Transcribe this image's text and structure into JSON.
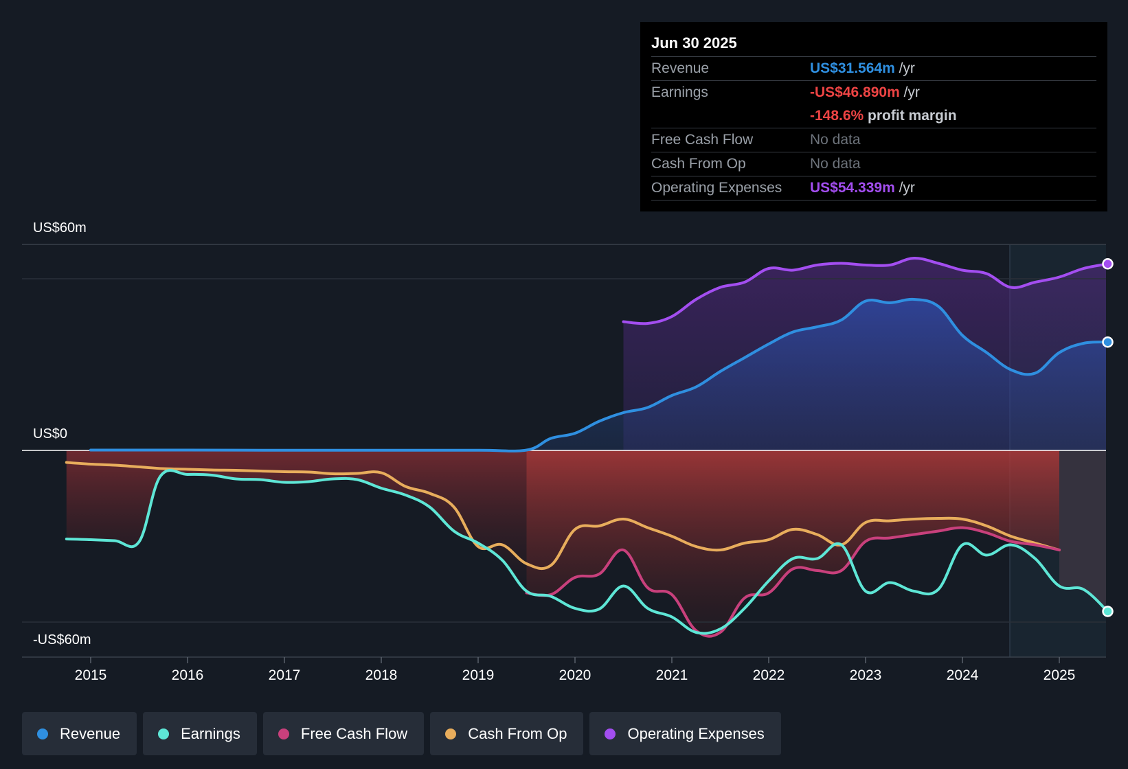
{
  "tooltip": {
    "date": "Jun 30 2025",
    "rows": [
      {
        "label": "Revenue",
        "value": "US$31.564m",
        "unit": " /yr",
        "color": "#2f8fe0"
      },
      {
        "label": "Earnings",
        "value": "-US$46.890m",
        "unit": " /yr",
        "color": "#ee4444"
      },
      {
        "label": "",
        "value": "-148.6%",
        "unit": " profit margin",
        "color": "#ee4444"
      },
      {
        "label": "Free Cash Flow",
        "value": "No data"
      },
      {
        "label": "Cash From Op",
        "value": "No data"
      },
      {
        "label": "Operating Expenses",
        "value": "US$54.339m",
        "unit": " /yr",
        "color": "#a34ef0"
      }
    ]
  },
  "legend": [
    {
      "label": "Revenue",
      "color": "#2f8fe0"
    },
    {
      "label": "Earnings",
      "color": "#5ee6d6"
    },
    {
      "label": "Free Cash Flow",
      "color": "#c8407c"
    },
    {
      "label": "Cash From Op",
      "color": "#e8ad5c"
    },
    {
      "label": "Operating Expenses",
      "color": "#a34ef0"
    }
  ],
  "chart_data": {
    "type": "line",
    "title": "",
    "xlabel": "",
    "ylabel": "",
    "ylim": [
      -60,
      60
    ],
    "y_axis_labels": [
      "US$60m",
      "US$0",
      "-US$60m"
    ],
    "x_ticks": [
      "2015",
      "2016",
      "2017",
      "2018",
      "2019",
      "2020",
      "2021",
      "2022",
      "2023",
      "2024",
      "2025"
    ],
    "xlim": [
      2014.5,
      2025.5
    ],
    "forecast_start": 2024.5,
    "series": [
      {
        "name": "Revenue",
        "color": "#2f8fe0",
        "fill": "revenue",
        "points": [
          [
            2015.0,
            0.1
          ],
          [
            2016.0,
            0.1
          ],
          [
            2017.0,
            0.05
          ],
          [
            2018.0,
            0.05
          ],
          [
            2019.0,
            0.05
          ],
          [
            2019.5,
            0.1
          ],
          [
            2019.75,
            3.5
          ],
          [
            2020.0,
            5.0
          ],
          [
            2020.25,
            8.5
          ],
          [
            2020.5,
            11.0
          ],
          [
            2020.75,
            12.5
          ],
          [
            2021.0,
            16.0
          ],
          [
            2021.25,
            18.5
          ],
          [
            2021.5,
            23.0
          ],
          [
            2021.75,
            27.0
          ],
          [
            2022.0,
            31.0
          ],
          [
            2022.25,
            34.5
          ],
          [
            2022.5,
            36.0
          ],
          [
            2022.75,
            38.0
          ],
          [
            2023.0,
            43.5
          ],
          [
            2023.25,
            43.0
          ],
          [
            2023.5,
            44.0
          ],
          [
            2023.75,
            42.0
          ],
          [
            2024.0,
            33.5
          ],
          [
            2024.25,
            28.5
          ],
          [
            2024.5,
            23.5
          ],
          [
            2024.75,
            22.5
          ],
          [
            2025.0,
            28.5
          ],
          [
            2025.25,
            31.2
          ],
          [
            2025.5,
            31.56
          ]
        ]
      },
      {
        "name": "Operating Expenses",
        "color": "#a34ef0",
        "fill": "opex",
        "points": [
          [
            2020.5,
            37.5
          ],
          [
            2020.75,
            37.0
          ],
          [
            2021.0,
            39.0
          ],
          [
            2021.25,
            44.0
          ],
          [
            2021.5,
            47.5
          ],
          [
            2021.75,
            49.0
          ],
          [
            2022.0,
            53.0
          ],
          [
            2022.25,
            52.5
          ],
          [
            2022.5,
            54.0
          ],
          [
            2022.75,
            54.5
          ],
          [
            2023.0,
            54.0
          ],
          [
            2023.25,
            54.0
          ],
          [
            2023.5,
            56.0
          ],
          [
            2023.75,
            54.5
          ],
          [
            2024.0,
            52.5
          ],
          [
            2024.25,
            51.5
          ],
          [
            2024.5,
            47.5
          ],
          [
            2024.75,
            49.0
          ],
          [
            2025.0,
            50.5
          ],
          [
            2025.25,
            53.0
          ],
          [
            2025.5,
            54.34
          ]
        ]
      },
      {
        "name": "Earnings",
        "color": "#5ee6d6",
        "fill": "earnings",
        "points": [
          [
            2014.75,
            -25.8
          ],
          [
            2015.0,
            -26.0
          ],
          [
            2015.25,
            -26.3
          ],
          [
            2015.5,
            -26.6
          ],
          [
            2015.72,
            -7.5
          ],
          [
            2016.0,
            -7.0
          ],
          [
            2016.25,
            -7.2
          ],
          [
            2016.5,
            -8.3
          ],
          [
            2016.75,
            -8.5
          ],
          [
            2017.0,
            -9.3
          ],
          [
            2017.25,
            -9.1
          ],
          [
            2017.5,
            -8.3
          ],
          [
            2017.75,
            -8.5
          ],
          [
            2018.0,
            -11.0
          ],
          [
            2018.25,
            -13.0
          ],
          [
            2018.5,
            -16.5
          ],
          [
            2018.75,
            -23.5
          ],
          [
            2019.0,
            -27.0
          ],
          [
            2019.25,
            -32.0
          ],
          [
            2019.5,
            -41.0
          ],
          [
            2019.75,
            -42.5
          ],
          [
            2020.0,
            -46.0
          ],
          [
            2020.25,
            -46.2
          ],
          [
            2020.5,
            -39.5
          ],
          [
            2020.75,
            -46.0
          ],
          [
            2021.0,
            -48.5
          ],
          [
            2021.25,
            -53.0
          ],
          [
            2021.5,
            -52.0
          ],
          [
            2021.75,
            -46.0
          ],
          [
            2022.0,
            -38.0
          ],
          [
            2022.25,
            -31.5
          ],
          [
            2022.5,
            -31.5
          ],
          [
            2022.75,
            -27.5
          ],
          [
            2023.0,
            -41.0
          ],
          [
            2023.25,
            -38.5
          ],
          [
            2023.5,
            -41.0
          ],
          [
            2023.75,
            -40.5
          ],
          [
            2024.0,
            -27.5
          ],
          [
            2024.25,
            -30.5
          ],
          [
            2024.5,
            -27.5
          ],
          [
            2024.75,
            -31.5
          ],
          [
            2025.0,
            -39.5
          ],
          [
            2025.25,
            -40.5
          ],
          [
            2025.5,
            -46.89
          ]
        ]
      },
      {
        "name": "Free Cash Flow",
        "color": "#c8407c",
        "points": [
          [
            2019.5,
            -41.5
          ],
          [
            2019.75,
            -42.0
          ],
          [
            2020.0,
            -37.0
          ],
          [
            2020.25,
            -36.0
          ],
          [
            2020.5,
            -29.0
          ],
          [
            2020.75,
            -40.0
          ],
          [
            2021.0,
            -42.0
          ],
          [
            2021.25,
            -52.5
          ],
          [
            2021.5,
            -53.0
          ],
          [
            2021.75,
            -43.0
          ],
          [
            2022.0,
            -41.5
          ],
          [
            2022.25,
            -34.5
          ],
          [
            2022.5,
            -35.0
          ],
          [
            2022.75,
            -35.0
          ],
          [
            2023.0,
            -26.5
          ],
          [
            2023.25,
            -25.5
          ],
          [
            2023.5,
            -24.5
          ],
          [
            2023.75,
            -23.5
          ],
          [
            2024.0,
            -22.5
          ],
          [
            2024.25,
            -24.0
          ],
          [
            2024.5,
            -26.5
          ],
          [
            2024.75,
            -27.5
          ],
          [
            2025.0,
            -29.0
          ]
        ]
      },
      {
        "name": "Cash From Op",
        "color": "#e8ad5c",
        "fill": "cashop",
        "points": [
          [
            2014.75,
            -3.5
          ],
          [
            2015.0,
            -4.0
          ],
          [
            2015.25,
            -4.3
          ],
          [
            2015.5,
            -4.8
          ],
          [
            2015.75,
            -5.3
          ],
          [
            2016.0,
            -5.5
          ],
          [
            2016.25,
            -5.7
          ],
          [
            2016.5,
            -5.8
          ],
          [
            2016.75,
            -6.0
          ],
          [
            2017.0,
            -6.2
          ],
          [
            2017.25,
            -6.3
          ],
          [
            2017.5,
            -6.8
          ],
          [
            2017.75,
            -6.7
          ],
          [
            2018.0,
            -6.5
          ],
          [
            2018.25,
            -10.5
          ],
          [
            2018.5,
            -12.5
          ],
          [
            2018.75,
            -16.5
          ],
          [
            2019.0,
            -28.0
          ],
          [
            2019.25,
            -27.5
          ],
          [
            2019.5,
            -33.0
          ],
          [
            2019.75,
            -33.5
          ],
          [
            2020.0,
            -23.0
          ],
          [
            2020.25,
            -22.0
          ],
          [
            2020.5,
            -20.0
          ],
          [
            2020.75,
            -22.5
          ],
          [
            2021.0,
            -25.0
          ],
          [
            2021.25,
            -28.0
          ],
          [
            2021.5,
            -29.0
          ],
          [
            2021.75,
            -27.0
          ],
          [
            2022.0,
            -26.0
          ],
          [
            2022.25,
            -23.0
          ],
          [
            2022.5,
            -24.5
          ],
          [
            2022.75,
            -27.5
          ],
          [
            2023.0,
            -21.0
          ],
          [
            2023.25,
            -20.5
          ],
          [
            2023.5,
            -20.0
          ],
          [
            2023.75,
            -19.8
          ],
          [
            2024.0,
            -20.0
          ],
          [
            2024.25,
            -22.0
          ],
          [
            2024.5,
            -25.0
          ],
          [
            2024.75,
            -27.0
          ],
          [
            2025.0,
            -29.0
          ]
        ]
      }
    ],
    "end_markers": [
      "Revenue",
      "Operating Expenses",
      "Earnings"
    ]
  }
}
